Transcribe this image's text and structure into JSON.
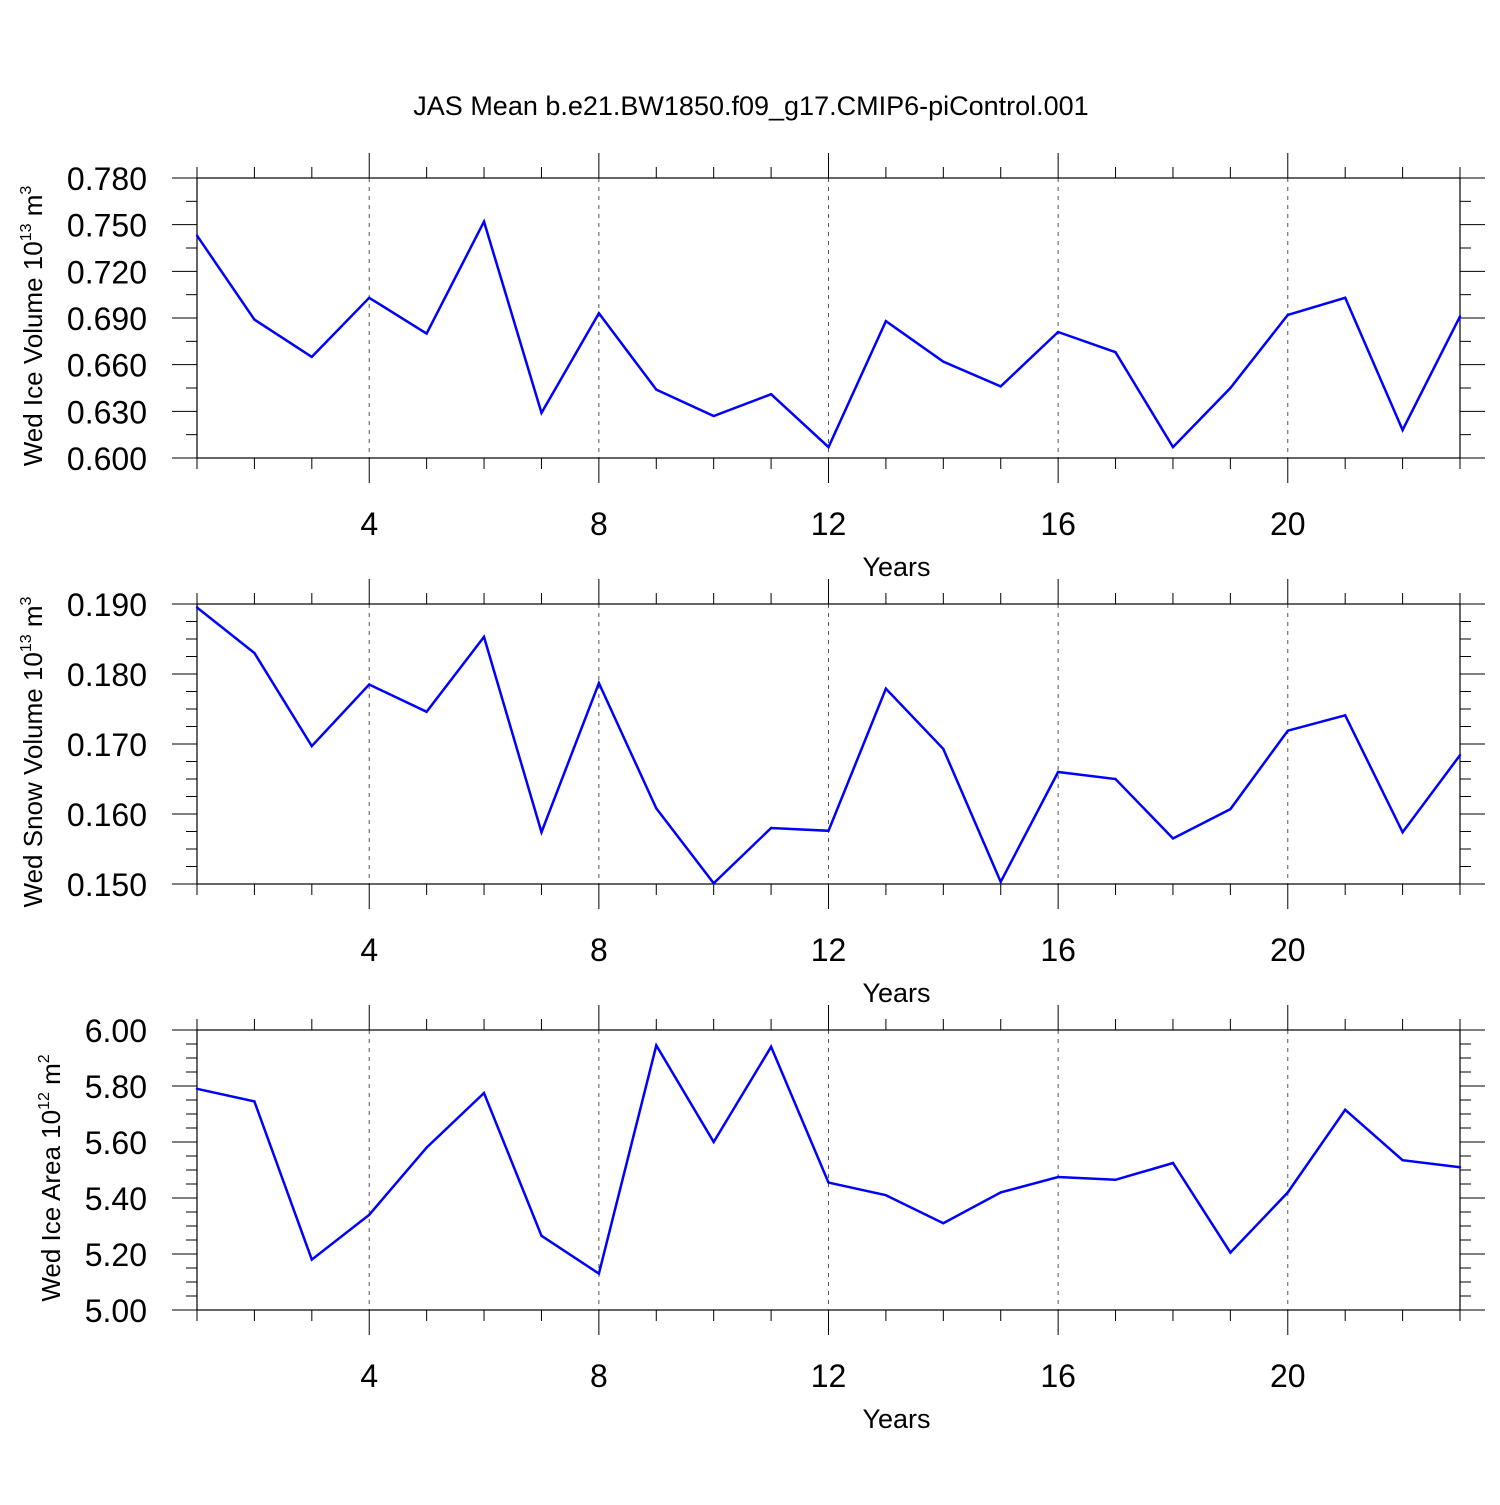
{
  "figure": {
    "title": "JAS Mean b.e21.BW1850.f09_g17.CMIP6-piControl.001"
  },
  "colors": {
    "line": "#0000ff",
    "axis": "#000000",
    "grid": "#555555"
  },
  "chart_data": [
    {
      "type": "line",
      "title": "",
      "xlabel": "Years",
      "ylabel": {
        "main": "Wed Ice Volume 10",
        "exponent": "13",
        "unit": "m",
        "unit_exponent": "3"
      },
      "xlim": [
        1,
        23
      ],
      "ylim": [
        0.6,
        0.78
      ],
      "xticks": [
        4,
        8,
        12,
        16,
        20
      ],
      "yticks": [
        "0.600",
        "0.630",
        "0.660",
        "0.690",
        "0.720",
        "0.750",
        "0.780"
      ],
      "grid": "vertical dashed at major x ticks",
      "series": [
        {
          "x": [
            1,
            2,
            3,
            4,
            5,
            6,
            7,
            8,
            9,
            10,
            11,
            12,
            13,
            14,
            15,
            16,
            17,
            18,
            19,
            20,
            21,
            22,
            23
          ],
          "values": [
            0.743,
            0.689,
            0.665,
            0.703,
            0.68,
            0.752,
            0.629,
            0.693,
            0.644,
            0.627,
            0.641,
            0.607,
            0.688,
            0.662,
            0.646,
            0.681,
            0.668,
            0.607,
            0.645,
            0.692,
            0.703,
            0.618,
            0.691
          ]
        }
      ]
    },
    {
      "type": "line",
      "title": "",
      "xlabel": "Years",
      "ylabel": {
        "main": "Wed Snow Volume 10",
        "exponent": "13",
        "unit": "m",
        "unit_exponent": "3"
      },
      "xlim": [
        1,
        23
      ],
      "ylim": [
        0.15,
        0.19
      ],
      "xticks": [
        4,
        8,
        12,
        16,
        20
      ],
      "yticks": [
        "0.150",
        "0.160",
        "0.170",
        "0.180",
        "0.190"
      ],
      "grid": "vertical dashed at major x ticks",
      "series": [
        {
          "x": [
            1,
            2,
            3,
            4,
            5,
            6,
            7,
            8,
            9,
            10,
            11,
            12,
            13,
            14,
            15,
            16,
            17,
            18,
            19,
            20,
            21,
            22,
            23
          ],
          "values": [
            0.1895,
            0.183,
            0.1697,
            0.1785,
            0.1746,
            0.1853,
            0.1574,
            0.1787,
            0.1608,
            0.1501,
            0.158,
            0.1576,
            0.1779,
            0.1693,
            0.1503,
            0.166,
            0.165,
            0.1565,
            0.1607,
            0.1719,
            0.1741,
            0.1574,
            0.1684
          ]
        }
      ]
    },
    {
      "type": "line",
      "title": "",
      "xlabel": "Years",
      "ylabel": {
        "main": "Wed Ice Area 10",
        "exponent": "12",
        "unit": "m",
        "unit_exponent": "2"
      },
      "xlim": [
        1,
        23
      ],
      "ylim": [
        5.0,
        6.0
      ],
      "xticks": [
        4,
        8,
        12,
        16,
        20
      ],
      "yticks": [
        "5.00",
        "5.20",
        "5.40",
        "5.60",
        "5.80",
        "6.00"
      ],
      "grid": "vertical dashed at major x ticks",
      "series": [
        {
          "x": [
            1,
            2,
            3,
            4,
            5,
            6,
            7,
            8,
            9,
            10,
            11,
            12,
            13,
            14,
            15,
            16,
            17,
            18,
            19,
            20,
            21,
            22,
            23
          ],
          "values": [
            5.79,
            5.745,
            5.18,
            5.34,
            5.58,
            5.775,
            5.265,
            5.13,
            5.945,
            5.6,
            5.94,
            5.455,
            5.41,
            5.31,
            5.42,
            5.475,
            5.465,
            5.525,
            5.205,
            5.42,
            5.715,
            5.535,
            5.51
          ]
        }
      ]
    }
  ]
}
